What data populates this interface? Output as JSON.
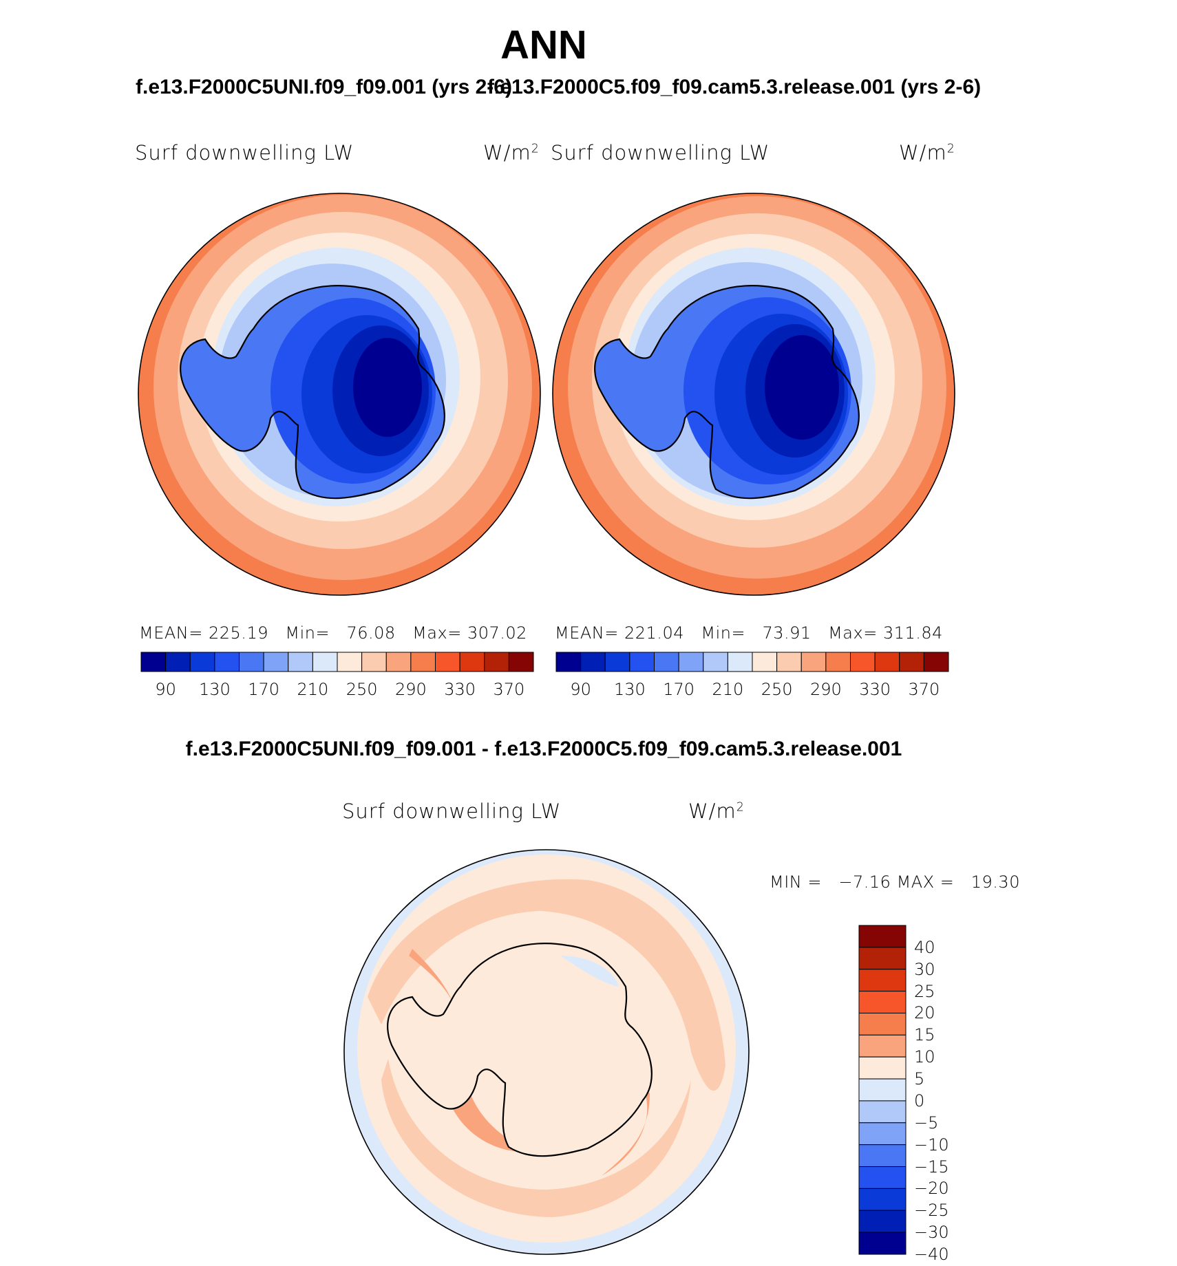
{
  "title": "ANN",
  "case1": "f.e13.F2000C5UNI.f09_f09.001 (yrs 2-6)",
  "case2": "f.e13.F2000C5.f09_f09.cam5.3.release.001 (yrs 2-6)",
  "diff_title": "f.e13.F2000C5UNI.f09_f09.001 - f.e13.F2000C5.f09_f09.cam5.3.release.001",
  "variable": "Surf downwelling LW",
  "units": "W/m",
  "units_exp": "2",
  "panel1": {
    "mean_label": "MEAN=",
    "mean": "225.19",
    "min_label": "Min=",
    "min": "76.08",
    "max_label": "Max=",
    "max": "307.02"
  },
  "panel2": {
    "mean_label": "MEAN=",
    "mean": "221.04",
    "min_label": "Min=",
    "min": "73.91",
    "max_label": "Max=",
    "max": "311.84"
  },
  "diff": {
    "min_label": "MIN =",
    "min": "−7.16",
    "max_label": "MAX =",
    "max": "19.30"
  },
  "colorbar": {
    "colors": [
      "#000090",
      "#001fb4",
      "#0a3ad8",
      "#2352f0",
      "#4a78f4",
      "#7fa3f7",
      "#b0c9f9",
      "#dce9fb",
      "#fdeadb",
      "#fcccb0",
      "#f9a47c",
      "#f67d4c",
      "#f7562a",
      "#dd3810",
      "#b32206",
      "#850505"
    ],
    "ticks": [
      "90",
      "130",
      "170",
      "210",
      "250",
      "290",
      "330",
      "370"
    ]
  },
  "diff_colorbar": {
    "colors": [
      "#850505",
      "#b32206",
      "#dd3810",
      "#f7562a",
      "#f67d4c",
      "#f9a47c",
      "#fdeadb",
      "#dce9fb",
      "#b0c9f9",
      "#7fa3f7",
      "#4a78f4",
      "#2352f0",
      "#0a3ad8",
      "#001fb4",
      "#000090"
    ],
    "ticks": [
      "40",
      "30",
      "25",
      "20",
      "15",
      "10",
      "5",
      "0",
      "−5",
      "−10",
      "−15",
      "−20",
      "−25",
      "−30",
      "−40"
    ]
  }
}
